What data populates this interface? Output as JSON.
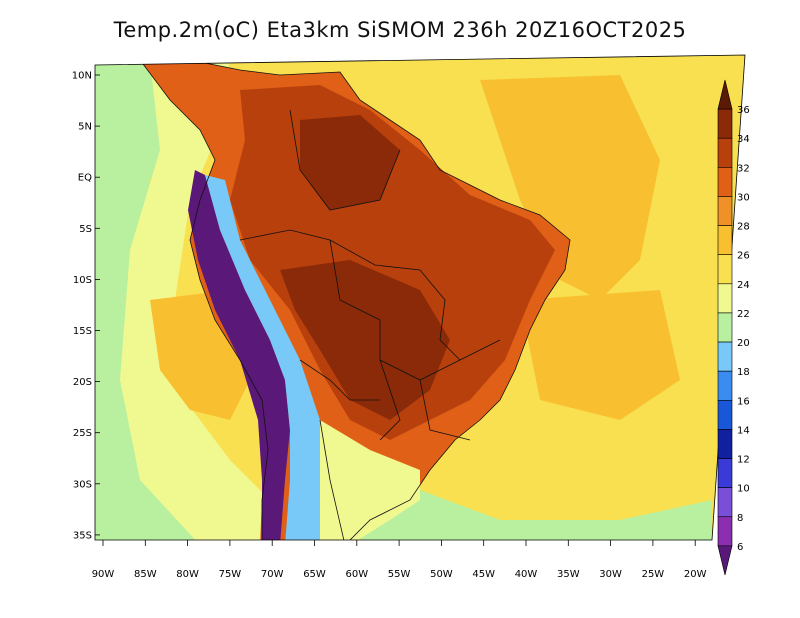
{
  "title": "Temp.2m(oC) Eta3km SiSMOM 236h 20Z16OCT2025",
  "lat_labels": [
    "10N",
    "5N",
    "EQ",
    "5S",
    "10S",
    "15S",
    "20S",
    "25S",
    "30S",
    "35S"
  ],
  "lon_labels": [
    "90W",
    "85W",
    "80W",
    "75W",
    "70W",
    "65W",
    "60W",
    "55W",
    "50W",
    "45W",
    "40W",
    "35W",
    "30W",
    "25W",
    "20W"
  ],
  "colorbar": {
    "labels": [
      "6",
      "8",
      "10",
      "12",
      "14",
      "16",
      "18",
      "20",
      "22",
      "24",
      "26",
      "28",
      "30",
      "32",
      "34",
      "36"
    ],
    "colors": [
      "#5a1878",
      "#8b2fb0",
      "#7a4fd8",
      "#3a3ad8",
      "#1020a0",
      "#1858d8",
      "#3a8cf0",
      "#78c8f8",
      "#b8f0a0",
      "#f0f890",
      "#f8e050",
      "#f8c030",
      "#f09028",
      "#e06018",
      "#b8400c",
      "#8a2a08",
      "#5a1a04"
    ]
  },
  "palette": {
    "ocean_cool": "#b8f0a0",
    "ocean_mid": "#f0f890",
    "ocean_warm": "#f8e050",
    "ocean_hot": "#f8c030",
    "land_hot": "#e06018",
    "land_veryhot": "#b8400c",
    "land_extreme": "#8a2a08",
    "andes_cold": "#5a1878"
  }
}
